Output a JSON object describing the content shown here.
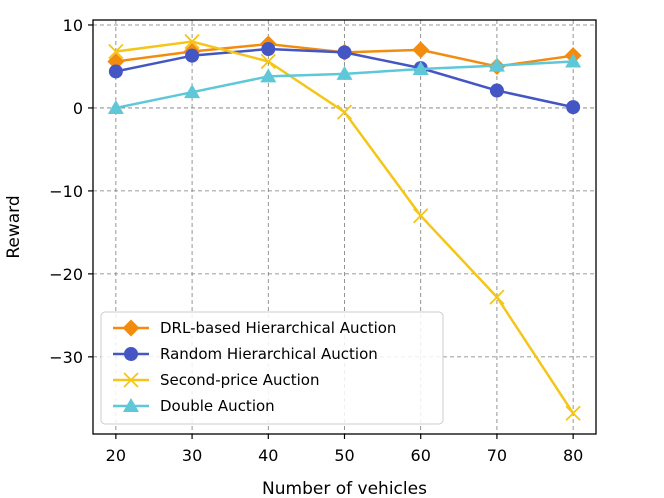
{
  "chart_data": {
    "type": "line",
    "title": "",
    "xlabel": "Number of vehicles",
    "ylabel": "Reward",
    "x": [
      20,
      30,
      40,
      50,
      60,
      70,
      80
    ],
    "xticks": [
      20,
      30,
      40,
      50,
      60,
      70,
      80
    ],
    "xtick_labels": [
      "20",
      "30",
      "40",
      "50",
      "60",
      "70",
      "80"
    ],
    "yticks": [
      10,
      0,
      -10,
      -20,
      -30
    ],
    "ytick_labels": [
      "10",
      "0",
      "−10",
      "−20",
      "−30"
    ],
    "xlim": [
      17,
      83
    ],
    "ylim": [
      -39.3,
      10.6
    ],
    "grid": true,
    "legend_position": "lower-left",
    "series": [
      {
        "name": "DRL-based Hierarchical Auction",
        "color": "#f28c0f",
        "marker": "diamond",
        "values": [
          5.6,
          6.8,
          7.7,
          6.7,
          7.0,
          5.0,
          6.3
        ]
      },
      {
        "name": "Random Hierarchical Auction",
        "color": "#4455c4",
        "marker": "circle",
        "values": [
          4.4,
          6.3,
          7.1,
          6.7,
          4.8,
          2.1,
          0.1
        ]
      },
      {
        "name": "Second-price Auction",
        "color": "#f5c518",
        "marker": "x",
        "values": [
          6.8,
          8.0,
          5.6,
          -0.5,
          -13.0,
          -22.8,
          -36.8
        ]
      },
      {
        "name": "Double Auction",
        "color": "#5ec8d8",
        "marker": "triangle",
        "values": [
          0.0,
          1.9,
          3.8,
          4.1,
          4.7,
          5.1,
          5.6
        ]
      }
    ]
  }
}
